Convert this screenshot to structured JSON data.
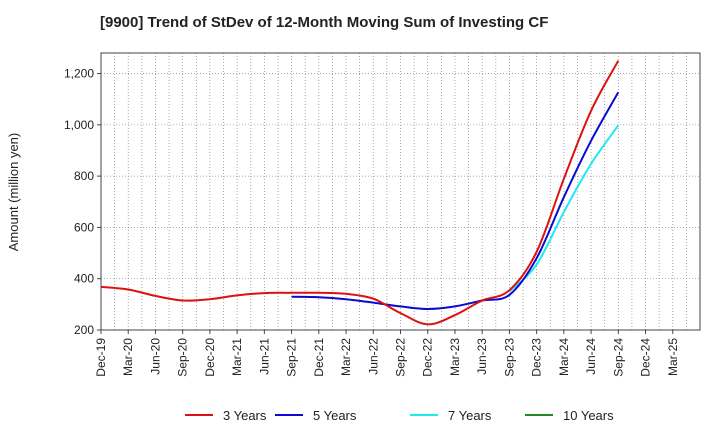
{
  "chart_data": {
    "type": "line",
    "title": "[9900]  Trend of StDev of 12-Month Moving Sum of Investing CF",
    "ylabel": "Amount (million yen)",
    "xlabel": "",
    "ylim": [
      200,
      1280
    ],
    "yticks": [
      200,
      400,
      600,
      800,
      1000,
      1200
    ],
    "ytick_labels": [
      "200",
      "400",
      "600",
      "800",
      "1,000",
      "1,200"
    ],
    "categories": [
      "Dec-19",
      "Mar-20",
      "Jun-20",
      "Sep-20",
      "Dec-20",
      "Mar-21",
      "Jun-21",
      "Sep-21",
      "Dec-21",
      "Mar-22",
      "Jun-22",
      "Sep-22",
      "Dec-22",
      "Mar-23",
      "Jun-23",
      "Sep-23",
      "Dec-23",
      "Mar-24",
      "Jun-24",
      "Sep-24",
      "Dec-24",
      "Mar-25"
    ],
    "grid": true,
    "legend_position": "bottom",
    "series": [
      {
        "name": "3 Years",
        "color": "#dd1111",
        "values": [
          368,
          358,
          333,
          315,
          320,
          335,
          344,
          345,
          345,
          341,
          322,
          266,
          222,
          258,
          315,
          355,
          505,
          790,
          1055,
          1250,
          null,
          null
        ]
      },
      {
        "name": "5 Years",
        "color": "#0a0ad0",
        "values": [
          null,
          null,
          null,
          null,
          null,
          null,
          null,
          330,
          328,
          320,
          307,
          292,
          282,
          292,
          315,
          337,
          480,
          718,
          938,
          1127,
          null,
          null
        ]
      },
      {
        "name": "7 Years",
        "color": "#22e8f0",
        "values": [
          null,
          null,
          null,
          null,
          null,
          null,
          null,
          null,
          null,
          null,
          null,
          null,
          null,
          null,
          null,
          350,
          455,
          660,
          848,
          998,
          null,
          null
        ]
      },
      {
        "name": "10 Years",
        "color": "#228822",
        "values": [
          null,
          null,
          null,
          null,
          null,
          null,
          null,
          null,
          null,
          null,
          null,
          null,
          null,
          null,
          null,
          null,
          null,
          null,
          null,
          null,
          null,
          null
        ]
      }
    ]
  }
}
